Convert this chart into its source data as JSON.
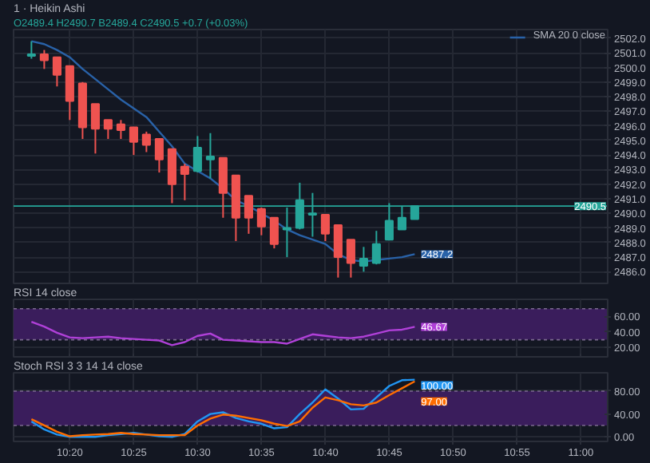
{
  "chart_data": [
    {
      "type": "candlestick",
      "title": "1 · Heikin Ashi",
      "subtitle": "O2489.4 H2490.7 B2489.4 C2490.5 +0.7 (+0.03%)",
      "x": [
        10.2833,
        10.3,
        10.3167,
        10.3333,
        10.35,
        10.3667,
        10.3833,
        10.4,
        10.4167,
        10.4333,
        10.45,
        10.4667,
        10.4833,
        10.5,
        10.5167,
        10.5333,
        10.55,
        10.5667,
        10.5833,
        10.6,
        10.6167,
        10.6333,
        10.65,
        10.6667,
        10.6833,
        10.7,
        10.7167,
        10.7333,
        10.75,
        10.7667,
        10.7833
      ],
      "ohlc": [
        [
          2500.8,
          2501.8,
          2500.6,
          2500.9
        ],
        [
          2500.9,
          2501.2,
          2499.9,
          2500.5
        ],
        [
          2500.7,
          2500.7,
          2498.7,
          2499.5
        ],
        [
          2500.1,
          2500.1,
          2496.4,
          2497.7
        ],
        [
          2498.9,
          2499.0,
          2495.1,
          2495.9
        ],
        [
          2497.5,
          2497.5,
          2494.1,
          2495.8
        ],
        [
          2496.4,
          2496.4,
          2495.1,
          2495.8
        ],
        [
          2496.1,
          2496.4,
          2495.1,
          2495.7
        ],
        [
          2495.9,
          2495.9,
          2494.0,
          2494.9
        ],
        [
          2495.4,
          2495.6,
          2494.2,
          2494.7
        ],
        [
          2495.1,
          2495.1,
          2492.8,
          2493.7
        ],
        [
          2494.4,
          2494.4,
          2490.7,
          2492.0
        ],
        [
          2493.2,
          2493.4,
          2490.9,
          2492.7
        ],
        [
          2492.9,
          2495.3,
          2492.8,
          2494.5
        ],
        [
          2493.7,
          2495.5,
          2492.4,
          2493.9
        ],
        [
          2493.8,
          2493.8,
          2489.7,
          2491.4
        ],
        [
          2492.6,
          2492.6,
          2488.1,
          2489.7
        ],
        [
          2491.2,
          2491.2,
          2488.6,
          2489.7
        ],
        [
          2490.3,
          2490.4,
          2488.5,
          2489.1
        ],
        [
          2489.7,
          2489.7,
          2487.6,
          2487.9
        ],
        [
          2488.9,
          2490.4,
          2487.0,
          2489.0
        ],
        [
          2489.0,
          2492.1,
          2488.9,
          2490.9
        ],
        [
          2489.9,
          2491.4,
          2488.4,
          2490.0
        ],
        [
          2489.9,
          2489.9,
          2488.1,
          2488.6
        ],
        [
          2489.2,
          2489.2,
          2485.6,
          2487.0
        ],
        [
          2488.2,
          2488.2,
          2485.6,
          2486.6
        ],
        [
          2486.4,
          2487.7,
          2486.0,
          2486.9
        ],
        [
          2486.6,
          2488.8,
          2486.5,
          2487.9
        ],
        [
          2488.2,
          2490.7,
          2488.2,
          2489.5
        ],
        [
          2488.9,
          2490.5,
          2488.9,
          2489.7
        ],
        [
          2489.6,
          2490.5,
          2489.6,
          2490.5
        ]
      ],
      "colors": [
        "#26a69a",
        "#ef5350",
        "#ef5350",
        "#ef5350",
        "#ef5350",
        "#ef5350",
        "#ef5350",
        "#ef5350",
        "#ef5350",
        "#ef5350",
        "#ef5350",
        "#ef5350",
        "#ef5350",
        "#26a69a",
        "#26a69a",
        "#ef5350",
        "#ef5350",
        "#ef5350",
        "#ef5350",
        "#ef5350",
        "#26a69a",
        "#26a69a",
        "#26a69a",
        "#ef5350",
        "#ef5350",
        "#ef5350",
        "#26a69a",
        "#26a69a",
        "#26a69a",
        "#26a69a",
        "#26a69a"
      ],
      "series": [
        {
          "type": "line",
          "name": "SMA 20 0 close",
          "color": "#2962a8",
          "values": [
            2501.8,
            2501.6,
            2501.2,
            2500.7,
            2499.9,
            2499.2,
            2498.5,
            2497.8,
            2497.2,
            2496.6,
            2495.6,
            2494.6,
            2493.4,
            2492.9,
            2492.4,
            2491.7,
            2490.9,
            2490.5,
            2490.0,
            2489.5,
            2488.9,
            2488.5,
            2488.2,
            2487.9,
            2487.2,
            2486.8,
            2486.7,
            2486.8,
            2486.9,
            2487.0,
            2487.2
          ],
          "value_labels": [
            null,
            null,
            null,
            null,
            null,
            null,
            null,
            null,
            null,
            null,
            null,
            null,
            null,
            null,
            null,
            null,
            null,
            null,
            null,
            null,
            null,
            null,
            null,
            null,
            null,
            null,
            null,
            null,
            null,
            null,
            "2487.2"
          ]
        }
      ],
      "ref_lines": [
        {
          "axis": "y",
          "value": 2490.5,
          "label": "2490.5",
          "color": "#26a69a"
        }
      ],
      "xlim": [
        10.26,
        11.035
      ],
      "xticks": [
        {
          "value": 10.3333,
          "label": null
        },
        {
          "value": 10.4167,
          "label": null
        },
        {
          "value": 10.5,
          "label": null
        },
        {
          "value": 10.5833,
          "label": null
        },
        {
          "value": 10.6667,
          "label": null
        },
        {
          "value": 10.75,
          "label": null
        },
        {
          "value": 10.8333,
          "label": null
        },
        {
          "value": 10.9167,
          "label": null
        },
        {
          "value": 11.0,
          "label": null
        }
      ],
      "ylim": [
        2485.2,
        2502.6
      ],
      "yticks": [
        {
          "value": 2486,
          "label": "2486.0"
        },
        {
          "value": 2487,
          "label": "2487.0"
        },
        {
          "value": 2488,
          "label": "2488.0"
        },
        {
          "value": 2489,
          "label": "2489.0"
        },
        {
          "value": 2490,
          "label": "2490.0"
        },
        {
          "value": 2491,
          "label": "2491.0"
        },
        {
          "value": 2492,
          "label": "2492.0"
        },
        {
          "value": 2493,
          "label": "2493.0"
        },
        {
          "value": 2494,
          "label": "2494.0"
        },
        {
          "value": 2495,
          "label": "2495.0"
        },
        {
          "value": 2496,
          "label": "2496.0"
        },
        {
          "value": 2497,
          "label": "2497.0"
        },
        {
          "value": 2498,
          "label": "2498.0"
        },
        {
          "value": 2499,
          "label": "2499.0"
        },
        {
          "value": 2500,
          "label": "2500.0"
        },
        {
          "value": 2501,
          "label": "2501.0"
        },
        {
          "value": 2502,
          "label": "2502.0"
        }
      ],
      "grid": true,
      "legend": "top right",
      "tick_labels": "y"
    },
    {
      "type": "line",
      "title": "RSI 14 close",
      "x": [
        10.2833,
        10.3,
        10.3167,
        10.3333,
        10.35,
        10.3667,
        10.3833,
        10.4,
        10.4167,
        10.4333,
        10.45,
        10.4667,
        10.4833,
        10.5,
        10.5167,
        10.5333,
        10.55,
        10.5667,
        10.5833,
        10.6,
        10.6167,
        10.6333,
        10.65,
        10.6667,
        10.6833,
        10.7,
        10.7167,
        10.7333,
        10.75,
        10.7667,
        10.7833
      ],
      "series": [
        {
          "color": "#b040d8",
          "values": [
            53,
            47,
            39,
            33,
            32,
            33,
            34,
            32,
            31,
            30,
            29,
            23,
            27,
            35,
            38,
            30,
            29,
            28,
            27,
            27,
            25,
            31,
            37,
            35,
            33,
            32,
            34,
            38,
            42,
            43,
            46.67
          ],
          "value_labels": [
            null,
            null,
            null,
            null,
            null,
            null,
            null,
            null,
            null,
            null,
            null,
            null,
            null,
            null,
            null,
            null,
            null,
            null,
            null,
            null,
            null,
            null,
            null,
            null,
            null,
            null,
            null,
            null,
            null,
            null,
            "46.67"
          ]
        }
      ],
      "bands": [
        {
          "axis": "y",
          "from": 30,
          "to": 70,
          "color": "#3a1d5c"
        }
      ],
      "ref_lines": [
        {
          "axis": "y",
          "value": 30,
          "color": "#7b6a8f",
          "line_style": "dashed"
        },
        {
          "axis": "y",
          "value": 70,
          "color": "#7b6a8f",
          "line_style": "dashed"
        }
      ],
      "xlim": [
        10.26,
        11.035
      ],
      "xticks": [
        {
          "value": 10.3333,
          "label": null
        },
        {
          "value": 10.4167,
          "label": null
        },
        {
          "value": 10.5,
          "label": null
        },
        {
          "value": 10.5833,
          "label": null
        },
        {
          "value": 10.6667,
          "label": null
        },
        {
          "value": 10.75,
          "label": null
        },
        {
          "value": 10.8333,
          "label": null
        },
        {
          "value": 10.9167,
          "label": null
        },
        {
          "value": 11.0,
          "label": null
        }
      ],
      "ylim": [
        8,
        82
      ],
      "yticks": [
        {
          "value": 20,
          "label": "20.00"
        },
        {
          "value": 40,
          "label": "40.00"
        },
        {
          "value": 60,
          "label": "60.00"
        }
      ],
      "grid": true,
      "tick_labels": "y"
    },
    {
      "type": "line",
      "title": "Stoch RSI 3 3 14 14 close",
      "x": [
        10.2833,
        10.3,
        10.3167,
        10.3333,
        10.35,
        10.3667,
        10.3833,
        10.4,
        10.4167,
        10.4333,
        10.45,
        10.4667,
        10.4833,
        10.5,
        10.5167,
        10.5333,
        10.55,
        10.5667,
        10.5833,
        10.6,
        10.6167,
        10.6333,
        10.65,
        10.6667,
        10.6833,
        10.7,
        10.7167,
        10.7333,
        10.75,
        10.7667,
        10.7833
      ],
      "series": [
        {
          "color": "#2196f3",
          "values": [
            27,
            13,
            4,
            0,
            0,
            0,
            3,
            5,
            7,
            4,
            1,
            0,
            5,
            27,
            40,
            43,
            33,
            27,
            23,
            15,
            17,
            40,
            60,
            83,
            67,
            48,
            49,
            69,
            89,
            99,
            100
          ],
          "value_labels": [
            null,
            null,
            null,
            null,
            null,
            null,
            null,
            null,
            null,
            null,
            null,
            null,
            null,
            null,
            null,
            null,
            null,
            null,
            null,
            null,
            null,
            null,
            null,
            null,
            null,
            null,
            null,
            null,
            null,
            null,
            "100.00"
          ]
        },
        {
          "color": "#ff6d00",
          "values": [
            31,
            20,
            9,
            1,
            3,
            4,
            5,
            7,
            5,
            4,
            3,
            3,
            3,
            20,
            32,
            39,
            37,
            33,
            29,
            23,
            19,
            27,
            51,
            69,
            64,
            57,
            55,
            60,
            73,
            85,
            97
          ],
          "value_labels": [
            null,
            null,
            null,
            null,
            null,
            null,
            null,
            null,
            null,
            null,
            null,
            null,
            null,
            null,
            null,
            null,
            null,
            null,
            null,
            null,
            null,
            null,
            null,
            null,
            null,
            null,
            null,
            null,
            null,
            null,
            "97.00"
          ]
        }
      ],
      "bands": [
        {
          "axis": "y",
          "from": 20,
          "to": 80,
          "color": "#3a1d5c"
        }
      ],
      "ref_lines": [
        {
          "axis": "y",
          "value": 20,
          "color": "#7b6a8f",
          "line_style": "dashed"
        },
        {
          "axis": "y",
          "value": 80,
          "color": "#7b6a8f",
          "line_style": "dashed"
        }
      ],
      "xlim": [
        10.26,
        11.035
      ],
      "xticks": [
        {
          "value": 10.3333,
          "label": "10:20"
        },
        {
          "value": 10.4167,
          "label": "10:25"
        },
        {
          "value": 10.5,
          "label": "10:30"
        },
        {
          "value": 10.5833,
          "label": "10:35"
        },
        {
          "value": 10.6667,
          "label": "10:40"
        },
        {
          "value": 10.75,
          "label": "10:45"
        },
        {
          "value": 10.8333,
          "label": "10:50"
        },
        {
          "value": 10.9167,
          "label": "10:55"
        },
        {
          "value": 11.0,
          "label": "11:00"
        }
      ],
      "ylim": [
        -8,
        112
      ],
      "yticks": [
        {
          "value": 0,
          "label": "0.00"
        },
        {
          "value": 40,
          "label": "40.00"
        },
        {
          "value": 80,
          "label": "80.00"
        }
      ],
      "grid": true
    }
  ]
}
